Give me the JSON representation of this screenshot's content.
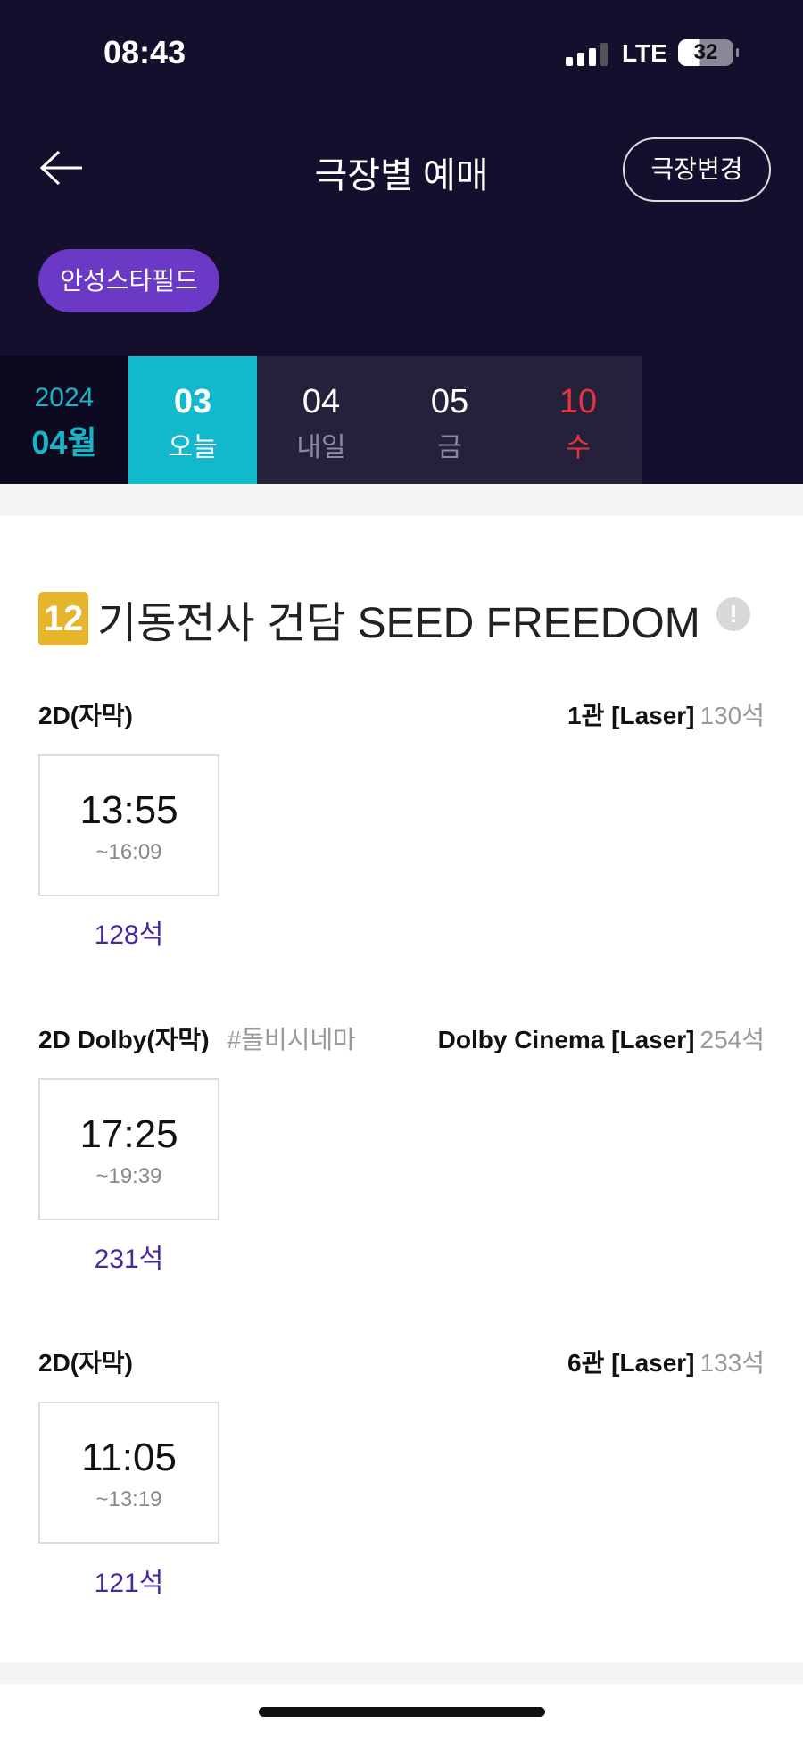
{
  "status": {
    "time": "08:43",
    "network": "LTE",
    "battery": "32"
  },
  "header": {
    "title": "극장별 예매",
    "change_label": "극장변경",
    "theater": "안성스타필드"
  },
  "dates": {
    "year": "2024",
    "month": "04월",
    "days": [
      {
        "num": "03",
        "label": "오늘",
        "selected": true
      },
      {
        "num": "04",
        "label": "내일"
      },
      {
        "num": "05",
        "label": "금"
      },
      {
        "num": "10",
        "label": "수",
        "holiday": true
      }
    ]
  },
  "movie": {
    "rating": "12",
    "title": "기동전사 건담 SEED FREEDOM",
    "rating_color": "#e7b52c"
  },
  "showings": [
    {
      "format": "2D(자막)",
      "tag": "",
      "hall": "1관 [Laser]",
      "capacity": "130석",
      "start": "13:55",
      "end": "~16:09",
      "seats": "128석"
    },
    {
      "format": "2D Dolby(자막)",
      "tag": "#돌비시네마",
      "hall": "Dolby Cinema [Laser]",
      "capacity": "254석",
      "start": "17:25",
      "end": "~19:39",
      "seats": "231석"
    },
    {
      "format": "2D(자막)",
      "tag": "",
      "hall": "6관 [Laser]",
      "capacity": "133석",
      "start": "11:05",
      "end": "~13:19",
      "seats": "121석"
    }
  ],
  "colors": {
    "header_bg": "#140f2c",
    "accent_cyan": "#12b8cc",
    "theater_pill": "#6a3ac6",
    "seats": "#47299a",
    "holiday": "#e5343d"
  }
}
